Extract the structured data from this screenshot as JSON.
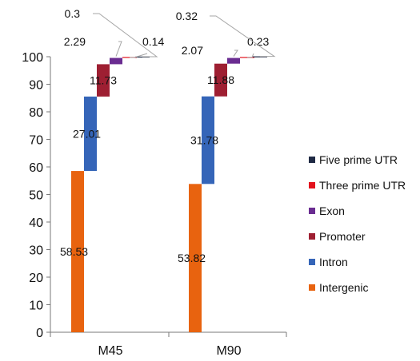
{
  "chart_data": {
    "type": "bar",
    "subtype": "stacked-waterfall",
    "title": "",
    "xlabel": "",
    "ylabel": "",
    "ylim": [
      0,
      100
    ],
    "yticks": [
      0,
      10,
      20,
      30,
      40,
      50,
      60,
      70,
      80,
      90,
      100
    ],
    "ytick_labels": [
      "0",
      "10",
      "20",
      "30",
      "40",
      "50",
      "60",
      "70",
      "80",
      "90",
      "100"
    ],
    "grid": false,
    "legend_position": "right",
    "categories": [
      "M45",
      "M90"
    ],
    "series": [
      {
        "name": "Intergenic",
        "color": "#e8630f",
        "values": [
          58.53,
          53.82
        ],
        "labels": [
          "58.53",
          "53.82"
        ]
      },
      {
        "name": "Intron",
        "color": "#3565b8",
        "values": [
          27.01,
          31.78
        ],
        "labels": [
          "27.01",
          "31.78"
        ]
      },
      {
        "name": "Promoter",
        "color": "#9e1f32",
        "values": [
          11.73,
          11.88
        ],
        "labels": [
          "11.73",
          "11.88"
        ]
      },
      {
        "name": "Exon",
        "color": "#6a2c91",
        "values": [
          2.29,
          2.07
        ],
        "labels": [
          "2.29",
          "2.07"
        ]
      },
      {
        "name": "Three prime UTR",
        "color": "#e3121d",
        "values": [
          0.14,
          0.23
        ],
        "labels": [
          "0.14",
          "0.23"
        ]
      },
      {
        "name": "Five prime UTR",
        "color": "#1f2a44",
        "values": [
          0.3,
          0.32
        ],
        "labels": [
          "0.3",
          "0.32"
        ]
      }
    ],
    "legend_order": [
      "Five prime UTR",
      "Three prime UTR",
      "Exon",
      "Promoter",
      "Intron",
      "Intergenic"
    ]
  }
}
